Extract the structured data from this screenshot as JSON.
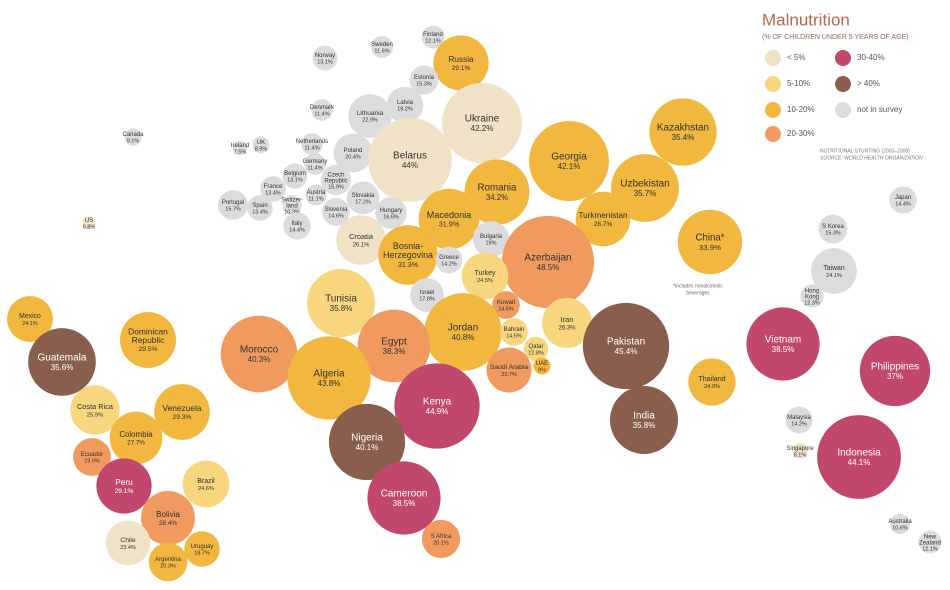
{
  "chart_data": {
    "type": "bubble",
    "title": "Malnutrition",
    "subtitle": "(% OF CHILDREN UNDER 5 YEARS OF AGE)",
    "source": [
      "NUTRITIONAL STUNTING (2003–2008)",
      "SOURCE: WORLD HEALTH ORGANIZATION"
    ],
    "note": [
      "*includes nonalcoholic",
      "beverages"
    ],
    "legend": [
      {
        "label": "< 5%",
        "color": "#efe2c6"
      },
      {
        "label": "5-10%",
        "color": "#f8d67e"
      },
      {
        "label": "10-20%",
        "color": "#f2b73e"
      },
      {
        "label": "20-30%",
        "color": "#f19a60"
      },
      {
        "label": "30-40%",
        "color": "#c1486c"
      },
      {
        "label": "> 40%",
        "color": "#8a5e4c"
      },
      {
        "label": "not in survey",
        "color": "#dcdcdf"
      }
    ],
    "points": [
      {
        "name": "Finland",
        "value": 12.1,
        "value_label": "12.1%",
        "color": "#dcdcdf"
      },
      {
        "name": "Sweden",
        "value": 11.6,
        "value_label": "11.6%",
        "color": "#dcdcdf"
      },
      {
        "name": "Norway",
        "value": 13.1,
        "value_label": "13.1%",
        "color": "#dcdcdf"
      },
      {
        "name": "Russia",
        "value": 29.1,
        "value_label": "29.1%",
        "color": "#f2b73e"
      },
      {
        "name": "Estonia",
        "value": 15.3,
        "value_label": "15.3%",
        "color": "#dcdcdf"
      },
      {
        "name": "Latvia",
        "value": 19.2,
        "value_label": "19.2%",
        "color": "#dcdcdf"
      },
      {
        "name": "Denmark",
        "value": 11.4,
        "value_label": "11.4%",
        "color": "#dcdcdf"
      },
      {
        "name": "Lithuania",
        "value": 22.9,
        "value_label": "22.9%",
        "color": "#dcdcdf"
      },
      {
        "name": "Ukraine",
        "value": 42.2,
        "value_label": "42.2%",
        "color": "#efe2c6"
      },
      {
        "name": "Canada",
        "value": 9.1,
        "value_label": "9.1%",
        "color": "#dcdcdf"
      },
      {
        "name": "Ireland",
        "value": 7.5,
        "value_label": "7.5%",
        "color": "#dcdcdf"
      },
      {
        "name": "UK",
        "value": 8.9,
        "value_label": "8.9%",
        "color": "#dcdcdf"
      },
      {
        "name": "Netherlands",
        "value": 11.4,
        "value_label": "11.4%",
        "color": "#dcdcdf"
      },
      {
        "name": "Poland",
        "value": 20.4,
        "value_label": "20.4%",
        "color": "#dcdcdf"
      },
      {
        "name": "Belarus",
        "value": 44,
        "value_label": "44%",
        "color": "#efe2c6"
      },
      {
        "name": "Georgia",
        "value": 42.1,
        "value_label": "42.1%",
        "color": "#f2b73e"
      },
      {
        "name": "Kazakhstan",
        "value": 35.4,
        "value_label": "35.4%",
        "color": "#f2b73e"
      },
      {
        "name": "Germany",
        "value": 11.4,
        "value_label": "11.4%",
        "color": "#dcdcdf"
      },
      {
        "name": "Belgium",
        "value": 13.1,
        "value_label": "13.1%",
        "color": "#dcdcdf"
      },
      {
        "name": "Czech Republic",
        "value": 15.9,
        "value_label": "15.9%",
        "color": "#dcdcdf"
      },
      {
        "name": "Uzbekistan",
        "value": 35.7,
        "value_label": "35.7%",
        "color": "#f2b73e"
      },
      {
        "name": "Romania",
        "value": 34.2,
        "value_label": "34.2%",
        "color": "#f2b73e"
      },
      {
        "name": "France",
        "value": 13.4,
        "value_label": "13.4%",
        "color": "#dcdcdf"
      },
      {
        "name": "Austria",
        "value": 11.1,
        "value_label": "11.1%",
        "color": "#dcdcdf"
      },
      {
        "name": "Slovakia",
        "value": 17.2,
        "value_label": "17.2%",
        "color": "#dcdcdf"
      },
      {
        "name": "Switzer-land",
        "value": 10.3,
        "value_label": "10.3%",
        "color": "#dcdcdf"
      },
      {
        "name": "Portugal",
        "value": 15.7,
        "value_label": "15.7%",
        "color": "#dcdcdf"
      },
      {
        "name": "Spain",
        "value": 13.4,
        "value_label": "13.4%",
        "color": "#dcdcdf"
      },
      {
        "name": "Slovenia",
        "value": 14.6,
        "value_label": "14.6%",
        "color": "#dcdcdf"
      },
      {
        "name": "Hungary",
        "value": 16.6,
        "value_label": "16.6%",
        "color": "#dcdcdf"
      },
      {
        "name": "Macedonia",
        "value": 31.9,
        "value_label": "31.9%",
        "color": "#f2b73e"
      },
      {
        "name": "Turkmenistan",
        "value": 28.7,
        "value_label": "28.7%",
        "color": "#f2b73e"
      },
      {
        "name": "Italy",
        "value": 14.4,
        "value_label": "14.4%",
        "color": "#dcdcdf"
      },
      {
        "name": "China*",
        "value": 33.9,
        "value_label": "33.9%",
        "color": "#f2b73e"
      },
      {
        "name": "Croatia",
        "value": 26.1,
        "value_label": "26.1%",
        "color": "#efe2c6"
      },
      {
        "name": "Bulgaria",
        "value": 19,
        "value_label": "19%",
        "color": "#dcdcdf"
      },
      {
        "name": "Azerbaijan",
        "value": 48.5,
        "value_label": "48.5%",
        "color": "#f19a60"
      },
      {
        "name": "Bosnia-Herzegovina",
        "value": 31.3,
        "value_label": "31.3%",
        "color": "#f2b73e"
      },
      {
        "name": "Greece",
        "value": 14.2,
        "value_label": "14.2%",
        "color": "#dcdcdf"
      },
      {
        "name": "US",
        "value": 6.8,
        "value_label": "6.8%",
        "color": "#efe2c6"
      },
      {
        "name": "Turkey",
        "value": 24.5,
        "value_label": "24.5%",
        "color": "#f8d67e"
      },
      {
        "name": "Israel",
        "value": 17.8,
        "value_label": "17.8%",
        "color": "#dcdcdf"
      },
      {
        "name": "Tunisia",
        "value": 35.8,
        "value_label": "35.8%",
        "color": "#f8d67e"
      },
      {
        "name": "Kuwait",
        "value": 14.6,
        "value_label": "14.6%",
        "color": "#f19a60"
      },
      {
        "name": "Iran",
        "value": 26.3,
        "value_label": "26.3%",
        "color": "#f8d67e"
      },
      {
        "name": "Jordan",
        "value": 40.8,
        "value_label": "40.8%",
        "color": "#f2b73e"
      },
      {
        "name": "Bahrain",
        "value": 14.5,
        "value_label": "14.5%",
        "color": "#f8d67e"
      },
      {
        "name": "Qatar",
        "value": 12.8,
        "value_label": "12.8%",
        "color": "#f8d67e"
      },
      {
        "name": "Egypt",
        "value": 38.3,
        "value_label": "38.3%",
        "color": "#f19a60"
      },
      {
        "name": "Pakistan",
        "value": 45.4,
        "value_label": "45.4%",
        "color": "#8a5e4c"
      },
      {
        "name": "UAE",
        "value": 9,
        "value_label": "9%",
        "color": "#f2b73e"
      },
      {
        "name": "Saudi Arabia",
        "value": 23.7,
        "value_label": "23.7%",
        "color": "#f19a60"
      },
      {
        "name": "Morocco",
        "value": 40.3,
        "value_label": "40.3%",
        "color": "#f19a60"
      },
      {
        "name": "Algeria",
        "value": 43.8,
        "value_label": "43.8%",
        "color": "#f2b73e"
      },
      {
        "name": "Thailand",
        "value": 24.9,
        "value_label": "24.9%",
        "color": "#f2b73e"
      },
      {
        "name": "Kenya",
        "value": 44.9,
        "value_label": "44.9%",
        "color": "#c1486c"
      },
      {
        "name": "India",
        "value": 35.8,
        "value_label": "35.8%",
        "color": "#8a5e4c"
      },
      {
        "name": "Nigeria",
        "value": 40.1,
        "value_label": "40.1%",
        "color": "#8a5e4c"
      },
      {
        "name": "Cameroon",
        "value": 38.5,
        "value_label": "38.5%",
        "color": "#c1486c"
      },
      {
        "name": "S Africa",
        "value": 20.1,
        "value_label": "20.1%",
        "color": "#f19a60"
      },
      {
        "name": "Mexico",
        "value": 24.1,
        "value_label": "24.1%",
        "color": "#f2b73e"
      },
      {
        "name": "Dominican Republic",
        "value": 29.5,
        "value_label": "29.5%",
        "color": "#f2b73e"
      },
      {
        "name": "Guatemala",
        "value": 35.6,
        "value_label": "35.6%",
        "color": "#8a5e4c"
      },
      {
        "name": "Costa Rica",
        "value": 25.9,
        "value_label": "25.9%",
        "color": "#f8d67e"
      },
      {
        "name": "Venezuela",
        "value": 29.3,
        "value_label": "29.3%",
        "color": "#f2b73e"
      },
      {
        "name": "Colombia",
        "value": 27.7,
        "value_label": "27.7%",
        "color": "#f2b73e"
      },
      {
        "name": "Ecuador",
        "value": 19.9,
        "value_label": "19.9%",
        "color": "#f19a60"
      },
      {
        "name": "Peru",
        "value": 29.1,
        "value_label": "29.1%",
        "color": "#c1486c"
      },
      {
        "name": "Brazil",
        "value": 24.6,
        "value_label": "24.6%",
        "color": "#f8d67e"
      },
      {
        "name": "Bolivia",
        "value": 28.4,
        "value_label": "28.4%",
        "color": "#f19a60"
      },
      {
        "name": "Chile",
        "value": 23.4,
        "value_label": "23.4%",
        "color": "#efe2c6"
      },
      {
        "name": "Uruguay",
        "value": 18.7,
        "value_label": "18.7%",
        "color": "#f2b73e"
      },
      {
        "name": "Argentina",
        "value": 20.3,
        "value_label": "20.3%",
        "color": "#f2b73e"
      },
      {
        "name": "Japan",
        "value": 14.4,
        "value_label": "14.4%",
        "color": "#dcdcdf"
      },
      {
        "name": "S Korea",
        "value": 15.3,
        "value_label": "15.3%",
        "color": "#dcdcdf"
      },
      {
        "name": "Taiwan",
        "value": 24.1,
        "value_label": "24.1%",
        "color": "#dcdcdf"
      },
      {
        "name": "Hong Kong",
        "value": 12.3,
        "value_label": "12.3%",
        "color": "#dcdcdf"
      },
      {
        "name": "Vietnam",
        "value": 38.5,
        "value_label": "38.5%",
        "color": "#c1486c"
      },
      {
        "name": "Philippines",
        "value": 37,
        "value_label": "37%",
        "color": "#c1486c"
      },
      {
        "name": "Malaysia",
        "value": 14.2,
        "value_label": "14.2%",
        "color": "#dcdcdf"
      },
      {
        "name": "Singapore",
        "value": 8.1,
        "value_label": "8.1%",
        "color": "#efe2c6"
      },
      {
        "name": "Indonesia",
        "value": 44.1,
        "value_label": "44.1%",
        "color": "#c1486c"
      },
      {
        "name": "Australia",
        "value": 10.6,
        "value_label": "10.6%",
        "color": "#dcdcdf"
      },
      {
        "name": "New Zealand",
        "value": 12.1,
        "value_label": "12.1%",
        "color": "#dcdcdf"
      }
    ]
  }
}
